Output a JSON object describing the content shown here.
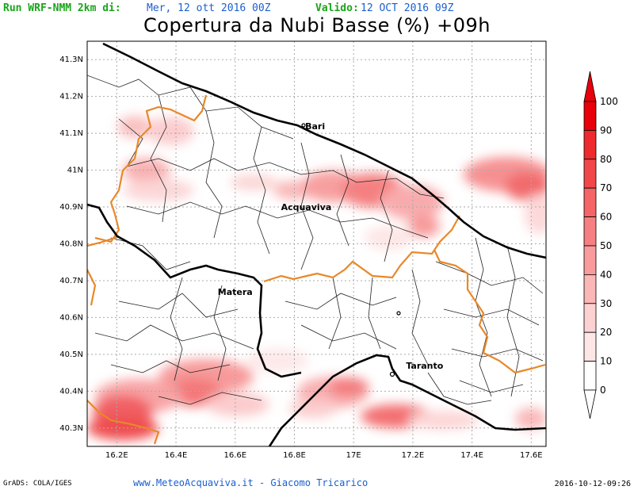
{
  "header": {
    "run_label": "Run WRF-NMM 2km di:",
    "run_date": "Mer, 12 ott 2016 00Z",
    "valid_label": "Valido:",
    "valid_date": "12 OCT 2016 09Z",
    "title": "Copertura da Nubi Basse (%) +09h"
  },
  "axes": {
    "lat_labels": [
      "41.3N",
      "41.2N",
      "41.1N",
      "41N",
      "40.9N",
      "40.8N",
      "40.7N",
      "40.6N",
      "40.5N",
      "40.4N",
      "40.3N"
    ],
    "lon_labels": [
      "16.2E",
      "16.4E",
      "16.6E",
      "16.8E",
      "17E",
      "17.2E",
      "17.4E",
      "17.6E"
    ],
    "lat_range": [
      40.25,
      41.35
    ],
    "lon_range": [
      16.1,
      17.65
    ],
    "grid": true
  },
  "cities": [
    {
      "name": "Bari",
      "lat": 41.12,
      "lon": 16.87
    },
    {
      "name": "Acquaviva",
      "lat": 40.9,
      "lon": 16.84
    },
    {
      "name": "Matera",
      "lat": 40.67,
      "lon": 16.6
    },
    {
      "name": "Taranto",
      "lat": 40.47,
      "lon": 17.24
    }
  ],
  "colorbar": {
    "labels": [
      "100",
      "90",
      "80",
      "70",
      "60",
      "50",
      "40",
      "30",
      "20",
      "10",
      "0"
    ],
    "colors": [
      "#e8000b",
      "#ee2a2e",
      "#f2474a",
      "#f56466",
      "#f77f81",
      "#f99b9c",
      "#fbb6b7",
      "#fcd1d1",
      "#fde6e6",
      "#ffffff"
    ]
  },
  "footer": {
    "grads": "GrADS: COLA/IGES",
    "credit": "www.MeteoAcquaviva.it - Giacomo Tricarico",
    "timestamp": "2016-10-12-09:26"
  },
  "colors": {
    "title_green": "#1aa51a",
    "title_blue": "#1a5fd0",
    "province_border": "#e8882a",
    "cloud_red": "#e8000b"
  }
}
